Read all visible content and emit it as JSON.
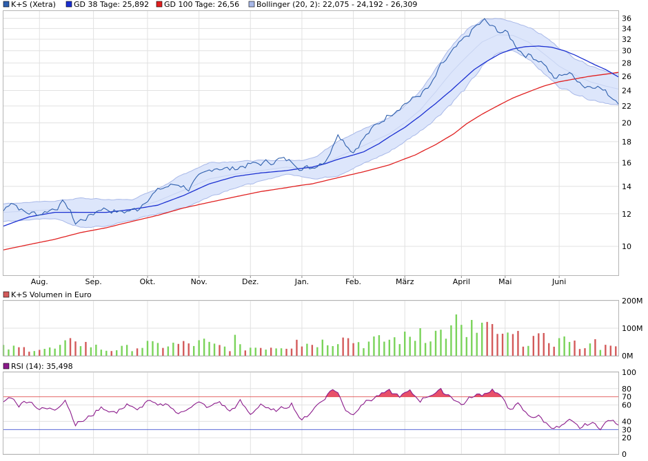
{
  "colors": {
    "price": "#2e5fad",
    "sma38": "#1a2fd1",
    "sma100": "#e02020",
    "bollinger_fill": "#dde6fb",
    "bollinger_edge": "#a8b8e8",
    "bollinger_mid": "#c8d4f2",
    "vol_up": "#7ad35a",
    "vol_down": "#d35a5a",
    "rsi": "#8b1a8b",
    "rsi_over": "#e8506a",
    "rsi_line_70": "#e05050",
    "rsi_line_30": "#4050d0"
  },
  "chart_data": [
    {
      "type": "line",
      "panel": "price",
      "legend": [
        {
          "label": "K+S (Xetra)",
          "series": "price"
        },
        {
          "label": "GD 38 Tage: 25,892",
          "series": "sma38"
        },
        {
          "label": "GD 100 Tage: 26,56",
          "series": "sma100"
        },
        {
          "label": "Bollinger (20, 2): 22,075 - 24,192 - 26,309",
          "series": "bollinger"
        }
      ],
      "scale": "log",
      "ylim": [
        8.5,
        37.5
      ],
      "y_ticks": [
        10,
        12,
        14,
        16,
        18,
        20,
        22,
        24,
        26,
        28,
        30,
        32,
        34,
        36
      ],
      "x_months": [
        {
          "label": "Aug.",
          "day": 14
        },
        {
          "label": "Sep.",
          "day": 35
        },
        {
          "label": "Okt.",
          "day": 56
        },
        {
          "label": "Nov.",
          "day": 76
        },
        {
          "label": "Dez.",
          "day": 96
        },
        {
          "label": "Jan.",
          "day": 116
        },
        {
          "label": "Feb.",
          "day": 136
        },
        {
          "label": "März",
          "day": 156
        },
        {
          "label": "April",
          "day": 178
        },
        {
          "label": "Mai",
          "day": 195
        },
        {
          "label": "Juni",
          "day": 216
        }
      ],
      "n_days": 240,
      "price_anchors": [
        [
          0,
          12.2
        ],
        [
          3,
          12.9
        ],
        [
          8,
          12.1
        ],
        [
          14,
          12.0
        ],
        [
          20,
          12.4
        ],
        [
          24,
          12.8
        ],
        [
          28,
          11.4
        ],
        [
          33,
          11.8
        ],
        [
          38,
          12.4
        ],
        [
          45,
          12.1
        ],
        [
          52,
          12.3
        ],
        [
          56,
          13.1
        ],
        [
          62,
          13.9
        ],
        [
          68,
          14.2
        ],
        [
          72,
          13.8
        ],
        [
          76,
          14.7
        ],
        [
          82,
          15.6
        ],
        [
          88,
          15.4
        ],
        [
          95,
          15.8
        ],
        [
          102,
          16.0
        ],
        [
          108,
          16.3
        ],
        [
          113,
          16.1
        ],
        [
          116,
          15.4
        ],
        [
          120,
          15.6
        ],
        [
          125,
          16.2
        ],
        [
          128,
          17.4
        ],
        [
          130,
          19.0
        ],
        [
          133,
          17.8
        ],
        [
          136,
          17.0
        ],
        [
          139,
          18.0
        ],
        [
          144,
          19.5
        ],
        [
          150,
          21.0
        ],
        [
          156,
          22.3
        ],
        [
          160,
          23.0
        ],
        [
          166,
          24.5
        ],
        [
          170,
          27.5
        ],
        [
          174,
          29.5
        ],
        [
          178,
          31.5
        ],
        [
          181,
          33.0
        ],
        [
          184,
          34.5
        ],
        [
          187,
          35.5
        ],
        [
          190,
          34.2
        ],
        [
          193,
          33.5
        ],
        [
          196,
          33.0
        ],
        [
          199,
          31.0
        ],
        [
          202,
          29.5
        ],
        [
          206,
          29.0
        ],
        [
          210,
          28.0
        ],
        [
          214,
          25.5
        ],
        [
          218,
          26.5
        ],
        [
          222,
          26.0
        ],
        [
          226,
          24.5
        ],
        [
          230,
          24.8
        ],
        [
          235,
          23.5
        ],
        [
          239,
          22.6
        ]
      ],
      "sma38_anchors": [
        [
          0,
          11.2
        ],
        [
          10,
          11.8
        ],
        [
          20,
          12.1
        ],
        [
          30,
          12.1
        ],
        [
          40,
          12.1
        ],
        [
          50,
          12.3
        ],
        [
          60,
          12.6
        ],
        [
          70,
          13.3
        ],
        [
          80,
          14.2
        ],
        [
          90,
          14.8
        ],
        [
          100,
          15.1
        ],
        [
          110,
          15.3
        ],
        [
          116,
          15.5
        ],
        [
          120,
          15.6
        ],
        [
          125,
          15.9
        ],
        [
          130,
          16.3
        ],
        [
          136,
          16.7
        ],
        [
          140,
          17.0
        ],
        [
          146,
          17.8
        ],
        [
          150,
          18.5
        ],
        [
          156,
          19.5
        ],
        [
          162,
          20.8
        ],
        [
          168,
          22.3
        ],
        [
          174,
          24.0
        ],
        [
          178,
          25.3
        ],
        [
          183,
          27.0
        ],
        [
          188,
          28.3
        ],
        [
          193,
          29.5
        ],
        [
          198,
          30.3
        ],
        [
          203,
          30.7
        ],
        [
          208,
          30.8
        ],
        [
          213,
          30.6
        ],
        [
          218,
          30.0
        ],
        [
          222,
          29.3
        ],
        [
          226,
          28.5
        ],
        [
          230,
          27.7
        ],
        [
          234,
          27.0
        ],
        [
          239,
          25.9
        ]
      ],
      "sma100_anchors": [
        [
          0,
          9.8
        ],
        [
          10,
          10.1
        ],
        [
          20,
          10.4
        ],
        [
          30,
          10.8
        ],
        [
          40,
          11.1
        ],
        [
          50,
          11.5
        ],
        [
          60,
          11.9
        ],
        [
          70,
          12.4
        ],
        [
          80,
          12.8
        ],
        [
          90,
          13.2
        ],
        [
          100,
          13.6
        ],
        [
          110,
          13.9
        ],
        [
          116,
          14.1
        ],
        [
          120,
          14.2
        ],
        [
          130,
          14.7
        ],
        [
          140,
          15.2
        ],
        [
          150,
          15.8
        ],
        [
          160,
          16.7
        ],
        [
          168,
          17.7
        ],
        [
          175,
          18.8
        ],
        [
          180,
          19.9
        ],
        [
          186,
          21.0
        ],
        [
          192,
          22.0
        ],
        [
          198,
          23.0
        ],
        [
          204,
          23.8
        ],
        [
          210,
          24.6
        ],
        [
          216,
          25.2
        ],
        [
          222,
          25.6
        ],
        [
          228,
          26.0
        ],
        [
          234,
          26.3
        ],
        [
          239,
          26.56
        ]
      ],
      "boll_mid_anchors": [
        [
          0,
          12.1
        ],
        [
          20,
          12.3
        ],
        [
          30,
          12.1
        ],
        [
          40,
          12.1
        ],
        [
          50,
          12.3
        ],
        [
          60,
          12.9
        ],
        [
          70,
          13.7
        ],
        [
          80,
          14.6
        ],
        [
          90,
          15.0
        ],
        [
          100,
          15.3
        ],
        [
          110,
          15.6
        ],
        [
          116,
          15.5
        ],
        [
          122,
          15.6
        ],
        [
          130,
          16.5
        ],
        [
          140,
          17.6
        ],
        [
          150,
          18.8
        ],
        [
          156,
          20.0
        ],
        [
          162,
          21.5
        ],
        [
          168,
          23.8
        ],
        [
          174,
          26.5
        ],
        [
          180,
          29.0
        ],
        [
          186,
          31.5
        ],
        [
          192,
          32.8
        ],
        [
          198,
          32.7
        ],
        [
          204,
          31.5
        ],
        [
          210,
          29.5
        ],
        [
          216,
          27.5
        ],
        [
          222,
          26.2
        ],
        [
          228,
          25.2
        ],
        [
          234,
          24.6
        ],
        [
          239,
          24.19
        ]
      ],
      "boll_width_anchors": [
        [
          0,
          0.6
        ],
        [
          20,
          0.6
        ],
        [
          30,
          1.0
        ],
        [
          40,
          0.9
        ],
        [
          50,
          0.7
        ],
        [
          60,
          0.9
        ],
        [
          70,
          1.3
        ],
        [
          80,
          1.4
        ],
        [
          90,
          1.1
        ],
        [
          100,
          0.9
        ],
        [
          110,
          0.6
        ],
        [
          116,
          0.7
        ],
        [
          122,
          1.0
        ],
        [
          130,
          1.6
        ],
        [
          140,
          1.7
        ],
        [
          150,
          1.8
        ],
        [
          156,
          2.0
        ],
        [
          162,
          2.4
        ],
        [
          168,
          3.3
        ],
        [
          174,
          4.2
        ],
        [
          180,
          4.6
        ],
        [
          186,
          4.1
        ],
        [
          192,
          3.2
        ],
        [
          198,
          2.6
        ],
        [
          204,
          2.8
        ],
        [
          210,
          3.1
        ],
        [
          216,
          3.0
        ],
        [
          222,
          2.6
        ],
        [
          228,
          2.4
        ],
        [
          234,
          2.2
        ],
        [
          239,
          2.12
        ]
      ]
    },
    {
      "type": "bar",
      "panel": "volume",
      "legend": [
        {
          "label": "K+S Volumen in Euro",
          "series": "volume"
        }
      ],
      "ylim": [
        0,
        200
      ],
      "unit": "M",
      "y_ticks": [
        {
          "value": 0,
          "label": "0M"
        },
        {
          "value": 100,
          "label": "100M"
        },
        {
          "value": 200,
          "label": "200M"
        }
      ],
      "bar_every": 2,
      "volume_anchors": [
        [
          0,
          28
        ],
        [
          20,
          24
        ],
        [
          28,
          55
        ],
        [
          40,
          20
        ],
        [
          56,
          36
        ],
        [
          76,
          44
        ],
        [
          88,
          28
        ],
        [
          96,
          30
        ],
        [
          110,
          36
        ],
        [
          124,
          50
        ],
        [
          132,
          64
        ],
        [
          140,
          44
        ],
        [
          148,
          56
        ],
        [
          156,
          64
        ],
        [
          164,
          76
        ],
        [
          176,
          90
        ],
        [
          182,
          72
        ],
        [
          190,
          96
        ],
        [
          196,
          70
        ],
        [
          204,
          56
        ],
        [
          212,
          58
        ],
        [
          222,
          40
        ],
        [
          232,
          32
        ],
        [
          239,
          26
        ]
      ],
      "volume_spikes": [
        [
          28,
          52
        ],
        [
          56,
          54
        ],
        [
          78,
          62
        ],
        [
          90,
          76
        ],
        [
          114,
          58
        ],
        [
          132,
          66
        ],
        [
          144,
          70
        ],
        [
          162,
          100
        ],
        [
          176,
          150
        ],
        [
          182,
          130
        ],
        [
          186,
          120
        ],
        [
          194,
          80
        ],
        [
          206,
          72
        ],
        [
          218,
          70
        ],
        [
          230,
          60
        ]
      ]
    },
    {
      "type": "line",
      "panel": "rsi",
      "legend": [
        {
          "label": "RSI (14): 35,498",
          "series": "rsi"
        }
      ],
      "ylim": [
        0,
        100
      ],
      "y_ticks": [
        0,
        20,
        40,
        60,
        80,
        100
      ],
      "ref_lines": [
        {
          "value": 70,
          "label": "70"
        },
        {
          "value": 30,
          "label": "30"
        }
      ],
      "rsi_anchors": [
        [
          0,
          64
        ],
        [
          3,
          70
        ],
        [
          6,
          60
        ],
        [
          10,
          66
        ],
        [
          14,
          55
        ],
        [
          20,
          55
        ],
        [
          24,
          67
        ],
        [
          28,
          37
        ],
        [
          32,
          42
        ],
        [
          38,
          57
        ],
        [
          44,
          50
        ],
        [
          48,
          62
        ],
        [
          52,
          52
        ],
        [
          56,
          66
        ],
        [
          60,
          58
        ],
        [
          64,
          62
        ],
        [
          68,
          48
        ],
        [
          72,
          58
        ],
        [
          76,
          62
        ],
        [
          80,
          57
        ],
        [
          84,
          64
        ],
        [
          88,
          52
        ],
        [
          92,
          64
        ],
        [
          96,
          48
        ],
        [
          100,
          62
        ],
        [
          104,
          52
        ],
        [
          108,
          55
        ],
        [
          112,
          62
        ],
        [
          116,
          40
        ],
        [
          120,
          54
        ],
        [
          124,
          66
        ],
        [
          128,
          80
        ],
        [
          130,
          74
        ],
        [
          133,
          55
        ],
        [
          136,
          48
        ],
        [
          139,
          62
        ],
        [
          142,
          65
        ],
        [
          146,
          72
        ],
        [
          150,
          76
        ],
        [
          154,
          71
        ],
        [
          158,
          76
        ],
        [
          162,
          66
        ],
        [
          166,
          73
        ],
        [
          170,
          77
        ],
        [
          174,
          71
        ],
        [
          178,
          60
        ],
        [
          182,
          70
        ],
        [
          186,
          73
        ],
        [
          190,
          79
        ],
        [
          193,
          72
        ],
        [
          196,
          56
        ],
        [
          200,
          60
        ],
        [
          204,
          47
        ],
        [
          208,
          46
        ],
        [
          212,
          35
        ],
        [
          216,
          32
        ],
        [
          220,
          40
        ],
        [
          224,
          32
        ],
        [
          228,
          38
        ],
        [
          232,
          33
        ],
        [
          236,
          42
        ],
        [
          239,
          35.5
        ]
      ]
    }
  ]
}
